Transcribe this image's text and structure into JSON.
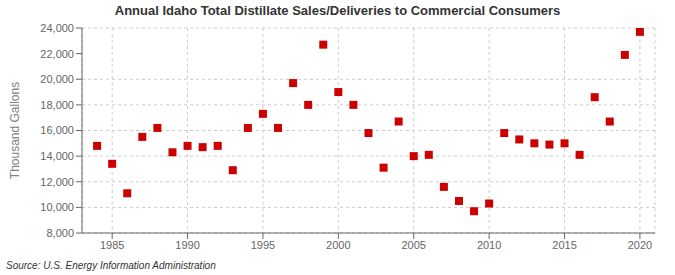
{
  "chart_data": {
    "type": "scatter",
    "title": "Annual Idaho Total Distillate Sales/Deliveries to Commercial Consumers",
    "ylabel": "Thousand Gallons",
    "annotations": [
      "Source: U.S. Energy Information Administration"
    ],
    "color": "#cc0000",
    "marker": "square",
    "grid": true,
    "x": [
      1984,
      1985,
      1986,
      1987,
      1988,
      1989,
      1990,
      1991,
      1992,
      1993,
      1994,
      1995,
      1996,
      1997,
      1998,
      1999,
      2000,
      2001,
      2002,
      2003,
      2004,
      2005,
      2006,
      2007,
      2008,
      2009,
      2010,
      2011,
      2012,
      2013,
      2014,
      2015,
      2016,
      2017,
      2018,
      2019,
      2020
    ],
    "values": [
      14800,
      13400,
      11100,
      15500,
      16200,
      14300,
      14800,
      14700,
      14800,
      12900,
      16200,
      17300,
      16200,
      19700,
      18000,
      22700,
      19000,
      18000,
      15800,
      13100,
      16700,
      14000,
      14100,
      11600,
      10500,
      9700,
      10300,
      15800,
      15300,
      15000,
      14900,
      15000,
      14100,
      18600,
      16700,
      21900,
      23700
    ],
    "xlim": [
      1983,
      2021
    ],
    "ylim": [
      8000,
      24000
    ],
    "xticks": [
      1985,
      1990,
      1995,
      2000,
      2005,
      2010,
      2015,
      2020
    ],
    "yticks": [
      {
        "value": 8000,
        "label": "8,000"
      },
      {
        "value": 10000,
        "label": "10,000"
      },
      {
        "value": 12000,
        "label": "12,000"
      },
      {
        "value": 14000,
        "label": "14,000"
      },
      {
        "value": 16000,
        "label": "16,000"
      },
      {
        "value": 18000,
        "label": "18,000"
      },
      {
        "value": 20000,
        "label": "20,000"
      },
      {
        "value": 22000,
        "label": "22,000"
      },
      {
        "value": 24000,
        "label": "24,000"
      }
    ]
  }
}
